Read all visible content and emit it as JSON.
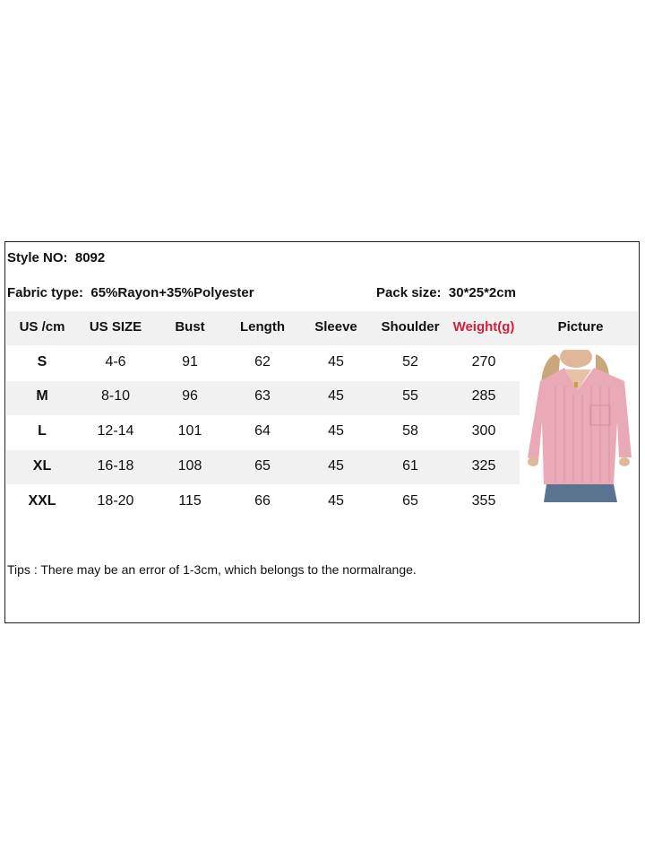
{
  "style_no": {
    "label": "Style NO:",
    "value": "8092"
  },
  "fabric": {
    "label": "Fabric type:",
    "value": "65%Rayon+35%Polyester"
  },
  "pack": {
    "label": "Pack size:",
    "value": "30*25*2cm"
  },
  "table": {
    "headers": [
      "US /cm",
      "US SIZE",
      "Bust",
      "Length",
      "Sleeve",
      "Shoulder",
      "Weight(g)",
      "Picture"
    ],
    "rows": [
      [
        "S",
        "4-6",
        "91",
        "62",
        "45",
        "52",
        "270"
      ],
      [
        "M",
        "8-10",
        "96",
        "63",
        "45",
        "55",
        "285"
      ],
      [
        "L",
        "12-14",
        "101",
        "64",
        "45",
        "58",
        "300"
      ],
      [
        "XL",
        "16-18",
        "108",
        "65",
        "45",
        "61",
        "325"
      ],
      [
        "XXL",
        "18-20",
        "115",
        "66",
        "45",
        "65",
        "355"
      ]
    ]
  },
  "colors": {
    "weight_header": "#d0213a",
    "band": "#f1f1f1",
    "shirt": "#e9a9b6"
  },
  "picture": "pink v-neck long-sleeve ribbed top with pocket, model photo",
  "tips": "Tips : There may be an error of 1-3cm, which belongs to the normalrange."
}
